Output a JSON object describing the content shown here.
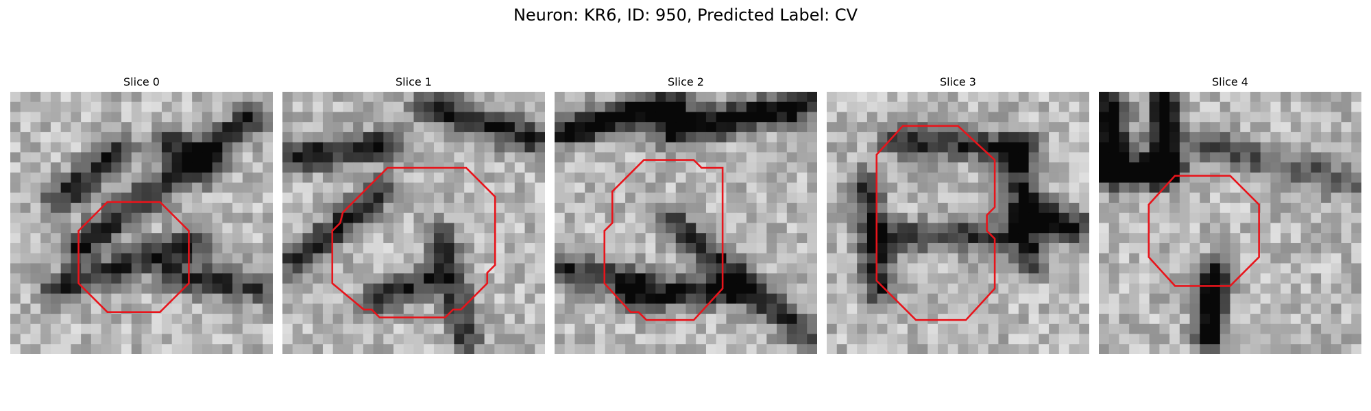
{
  "figure": {
    "title": "Neuron: KR6, ID: 950, Predicted Label: CV"
  },
  "overlay": {
    "contour_color": "#e8141b"
  },
  "panels": [
    {
      "title": "Slice 0",
      "seed": 11,
      "features": [
        [
          0.18,
          0.42,
          0.42,
          0.22,
          0.58
        ],
        [
          0.62,
          0.2,
          0.75,
          0.3,
          0.55
        ],
        [
          0.25,
          0.6,
          0.92,
          0.1,
          0.6
        ],
        [
          0.7,
          0.58,
          0.18,
          0.75,
          0.55
        ],
        [
          0.62,
          0.7,
          0.95,
          0.75,
          0.5
        ]
      ],
      "contour": [
        [
          0.37,
          0.42
        ],
        [
          0.57,
          0.42
        ],
        [
          0.68,
          0.53
        ],
        [
          0.68,
          0.73
        ],
        [
          0.57,
          0.84
        ],
        [
          0.37,
          0.84
        ],
        [
          0.26,
          0.73
        ],
        [
          0.26,
          0.53
        ]
      ]
    },
    {
      "seed": 23,
      "title": "Slice 1",
      "features": [
        [
          0.05,
          0.25,
          0.4,
          0.2,
          0.62
        ],
        [
          0.55,
          0.05,
          0.95,
          0.18,
          0.6
        ],
        [
          0.38,
          0.38,
          0.05,
          0.65,
          0.58
        ],
        [
          0.55,
          0.72,
          0.35,
          0.8,
          0.55
        ],
        [
          0.6,
          0.55,
          0.7,
          0.95,
          0.5
        ]
      ],
      "contour": [
        [
          0.4,
          0.29
        ],
        [
          0.7,
          0.29
        ],
        [
          0.81,
          0.4
        ],
        [
          0.81,
          0.66
        ],
        [
          0.78,
          0.69
        ],
        [
          0.78,
          0.73
        ],
        [
          0.68,
          0.83
        ],
        [
          0.65,
          0.83
        ],
        [
          0.62,
          0.86
        ],
        [
          0.37,
          0.86
        ],
        [
          0.34,
          0.83
        ],
        [
          0.31,
          0.83
        ],
        [
          0.19,
          0.73
        ],
        [
          0.19,
          0.53
        ],
        [
          0.22,
          0.5
        ],
        [
          0.23,
          0.46
        ]
      ]
    },
    {
      "seed": 37,
      "title": "Slice 2",
      "features": [
        [
          0.05,
          0.15,
          0.45,
          0.05,
          0.78
        ],
        [
          0.45,
          0.15,
          0.95,
          0.05,
          0.78
        ],
        [
          0.3,
          0.78,
          0.7,
          0.75,
          0.65
        ],
        [
          0.05,
          0.68,
          0.3,
          0.72,
          0.55
        ],
        [
          0.45,
          0.5,
          0.95,
          0.92,
          0.55
        ]
      ],
      "contour": [
        [
          0.34,
          0.26
        ],
        [
          0.53,
          0.26
        ],
        [
          0.56,
          0.29
        ],
        [
          0.64,
          0.29
        ],
        [
          0.64,
          0.75
        ],
        [
          0.53,
          0.87
        ],
        [
          0.35,
          0.87
        ],
        [
          0.32,
          0.84
        ],
        [
          0.29,
          0.84
        ],
        [
          0.19,
          0.73
        ],
        [
          0.19,
          0.53
        ],
        [
          0.22,
          0.5
        ],
        [
          0.22,
          0.38
        ]
      ]
    },
    {
      "seed": 49,
      "title": "Slice 3",
      "features": [
        [
          0.15,
          0.35,
          0.2,
          0.75,
          0.55
        ],
        [
          0.25,
          0.18,
          0.75,
          0.22,
          0.55
        ],
        [
          0.72,
          0.22,
          0.78,
          0.65,
          0.55
        ],
        [
          0.22,
          0.55,
          0.7,
          0.55,
          0.5
        ],
        [
          0.78,
          0.45,
          0.95,
          0.52,
          0.7
        ]
      ],
      "contour": [
        [
          0.29,
          0.13
        ],
        [
          0.5,
          0.13
        ],
        [
          0.64,
          0.26
        ],
        [
          0.64,
          0.44
        ],
        [
          0.61,
          0.47
        ],
        [
          0.61,
          0.53
        ],
        [
          0.64,
          0.56
        ],
        [
          0.64,
          0.75
        ],
        [
          0.53,
          0.87
        ],
        [
          0.34,
          0.87
        ],
        [
          0.19,
          0.72
        ],
        [
          0.19,
          0.24
        ]
      ]
    },
    {
      "seed": 61,
      "title": "Slice 4",
      "features": [
        [
          0.05,
          0.05,
          0.05,
          0.3,
          0.8
        ],
        [
          0.25,
          0.05,
          0.25,
          0.3,
          0.8
        ],
        [
          0.05,
          0.3,
          0.25,
          0.3,
          0.8
        ],
        [
          0.4,
          0.2,
          0.95,
          0.35,
          0.4
        ],
        [
          0.42,
          0.92,
          0.44,
          0.7,
          0.85
        ]
      ],
      "contour": [
        [
          0.29,
          0.32
        ],
        [
          0.5,
          0.32
        ],
        [
          0.61,
          0.43
        ],
        [
          0.61,
          0.63
        ],
        [
          0.5,
          0.74
        ],
        [
          0.29,
          0.74
        ],
        [
          0.19,
          0.63
        ],
        [
          0.19,
          0.43
        ]
      ]
    }
  ]
}
